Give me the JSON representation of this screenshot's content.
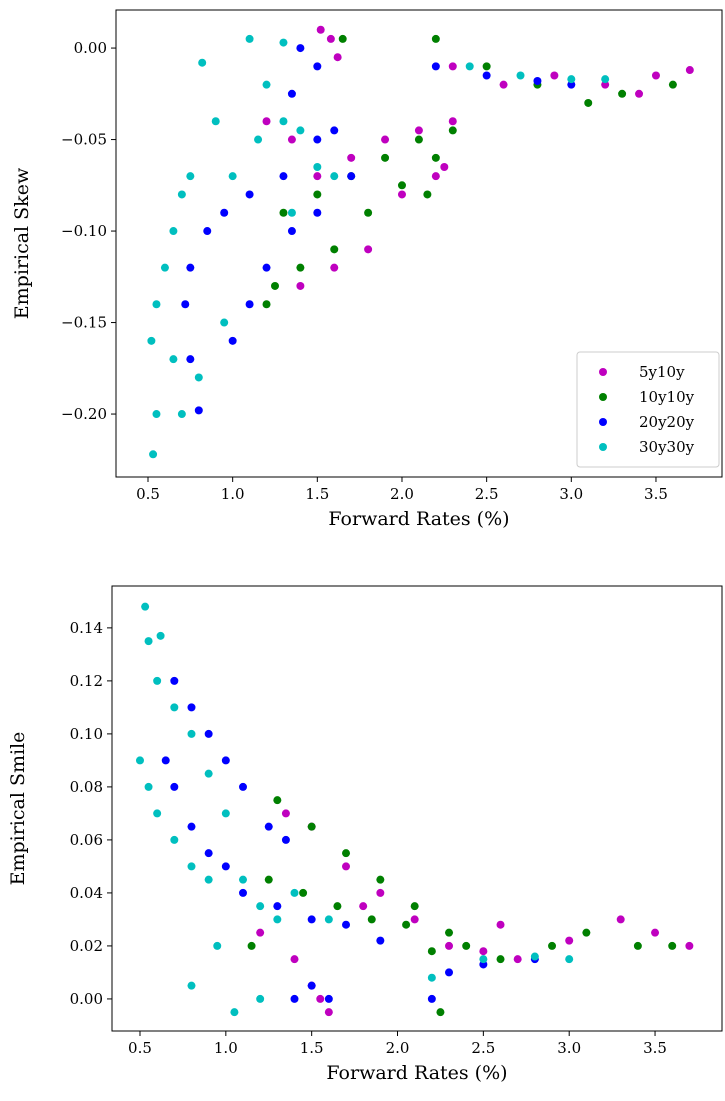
{
  "chart_data": [
    {
      "type": "scatter",
      "xlabel": "Forward Rates (%)",
      "ylabel": "Empirical Skew",
      "xlim": [
        0.311,
        3.89
      ],
      "ylim": [
        -0.2344,
        0.0208
      ],
      "xticks": [
        0.5,
        {
          "value": 1.0,
          "label": "1.0"
        },
        1.5,
        {
          "value": 2.0,
          "label": "2.0"
        },
        2.5,
        {
          "value": 3.0,
          "label": "3.0"
        },
        3.5
      ],
      "yticks": [
        {
          "value": -0.2,
          "label": "−0.20"
        },
        {
          "value": -0.15,
          "label": "−0.15"
        },
        {
          "value": -0.1,
          "label": "−0.10"
        },
        {
          "value": -0.05,
          "label": "−0.05"
        },
        {
          "value": 0,
          "label": "0.00"
        }
      ],
      "legend": "lower right",
      "series": [
        {
          "name": "5y10y",
          "color": "#bf00bf",
          "x": [
            1.52,
            1.58,
            1.62,
            1.2,
            1.35,
            1.5,
            1.7,
            1.9,
            2.1,
            2.3,
            2.2,
            2.25,
            1.4,
            1.6,
            1.8,
            2.0,
            2.3,
            2.6,
            2.9,
            3.2,
            3.5,
            3.7,
            3.4
          ],
          "values": [
            0.01,
            0.005,
            -0.005,
            -0.04,
            -0.05,
            -0.07,
            -0.06,
            -0.05,
            -0.045,
            -0.04,
            -0.07,
            -0.065,
            -0.13,
            -0.12,
            -0.11,
            -0.08,
            -0.01,
            -0.02,
            -0.015,
            -0.02,
            -0.015,
            -0.012,
            -0.025
          ]
        },
        {
          "name": "10y10y",
          "color": "#008000",
          "x": [
            1.65,
            1.25,
            1.4,
            1.6,
            1.8,
            2.0,
            2.1,
            2.2,
            2.15,
            2.3,
            1.3,
            1.5,
            1.7,
            1.9,
            2.2,
            2.5,
            2.8,
            3.1,
            3.3,
            3.6,
            1.2
          ],
          "values": [
            0.005,
            -0.13,
            -0.12,
            -0.11,
            -0.09,
            -0.075,
            -0.05,
            -0.06,
            -0.08,
            -0.045,
            -0.09,
            -0.08,
            -0.07,
            -0.06,
            0.005,
            -0.01,
            -0.02,
            -0.03,
            -0.025,
            -0.02,
            -0.14
          ]
        },
        {
          "name": "20y20y",
          "color": "#0000ff",
          "x": [
            0.8,
            0.75,
            0.72,
            0.75,
            0.85,
            0.95,
            1.1,
            1.3,
            1.5,
            1.6,
            1.0,
            1.1,
            1.2,
            1.35,
            1.5,
            1.7,
            1.4,
            1.5,
            1.35,
            2.2,
            2.5,
            2.8,
            3.0
          ],
          "values": [
            -0.198,
            -0.17,
            -0.14,
            -0.12,
            -0.1,
            -0.09,
            -0.08,
            -0.07,
            -0.05,
            -0.045,
            -0.16,
            -0.14,
            -0.12,
            -0.1,
            -0.09,
            -0.07,
            0.0,
            -0.01,
            -0.025,
            -0.01,
            -0.015,
            -0.018,
            -0.02
          ]
        },
        {
          "name": "30y30y",
          "color": "#00bfbf",
          "x": [
            0.53,
            0.55,
            0.52,
            0.55,
            0.6,
            0.65,
            0.7,
            0.75,
            0.82,
            0.9,
            1.0,
            1.1,
            1.2,
            1.3,
            1.15,
            1.3,
            1.4,
            1.5,
            1.6,
            1.35,
            0.7,
            0.8,
            0.95,
            0.65,
            2.4,
            2.7,
            3.0,
            3.2
          ],
          "values": [
            -0.222,
            -0.2,
            -0.16,
            -0.14,
            -0.12,
            -0.1,
            -0.08,
            -0.07,
            -0.008,
            -0.04,
            -0.07,
            0.005,
            -0.02,
            0.003,
            -0.05,
            -0.04,
            -0.045,
            -0.065,
            -0.07,
            -0.09,
            -0.2,
            -0.18,
            -0.15,
            -0.17,
            -0.01,
            -0.015,
            -0.017,
            -0.017
          ]
        }
      ]
    },
    {
      "type": "scatter",
      "xlabel": "Forward Rates (%)",
      "ylabel": "Empirical Smile",
      "xlim": [
        0.337,
        3.89
      ],
      "ylim": [
        -0.0121,
        0.1558
      ],
      "xticks": [
        0.5,
        {
          "value": 1.0,
          "label": "1.0"
        },
        1.5,
        {
          "value": 2.0,
          "label": "2.0"
        },
        2.5,
        {
          "value": 3.0,
          "label": "3.0"
        },
        3.5
      ],
      "yticks": [
        {
          "value": 0,
          "label": "0.00"
        },
        {
          "value": 0.02,
          "label": "0.02"
        },
        {
          "value": 0.04,
          "label": "0.04"
        },
        {
          "value": 0.06,
          "label": "0.06"
        },
        {
          "value": 0.08,
          "label": "0.08"
        },
        {
          "value": 0.1,
          "label": "0.10"
        },
        {
          "value": 0.12,
          "label": "0.12"
        },
        {
          "value": 0.14,
          "label": "0.14"
        }
      ],
      "series": [
        {
          "name": "5y10y",
          "color": "#bf00bf",
          "x": [
            1.5,
            1.55,
            1.6,
            1.2,
            1.35,
            1.5,
            1.7,
            1.9,
            2.1,
            2.3,
            2.5,
            2.6,
            2.7,
            3.0,
            3.3,
            3.5,
            3.7,
            1.8,
            1.4
          ],
          "values": [
            0.005,
            0.0,
            -0.005,
            0.025,
            0.07,
            0.065,
            0.05,
            0.04,
            0.03,
            0.02,
            0.018,
            0.028,
            0.015,
            0.022,
            0.03,
            0.025,
            0.02,
            0.035,
            0.015
          ]
        },
        {
          "name": "10y10y",
          "color": "#008000",
          "x": [
            1.3,
            1.5,
            1.7,
            1.9,
            2.1,
            2.3,
            2.4,
            1.25,
            1.45,
            1.65,
            1.85,
            2.05,
            2.2,
            2.25,
            2.6,
            2.9,
            3.1,
            3.4,
            3.6,
            1.15
          ],
          "values": [
            0.075,
            0.065,
            0.055,
            0.045,
            0.035,
            0.025,
            0.02,
            0.045,
            0.04,
            0.035,
            0.03,
            0.028,
            0.018,
            -0.005,
            0.015,
            0.02,
            0.025,
            0.02,
            0.02,
            0.02
          ]
        },
        {
          "name": "20y20y",
          "color": "#0000ff",
          "x": [
            0.7,
            0.8,
            0.9,
            1.0,
            1.1,
            1.25,
            1.35,
            0.65,
            0.7,
            0.8,
            0.9,
            1.0,
            1.1,
            1.3,
            1.5,
            1.7,
            1.9,
            1.4,
            1.5,
            1.6,
            2.2,
            2.3,
            2.5,
            2.8
          ],
          "values": [
            0.12,
            0.11,
            0.1,
            0.09,
            0.08,
            0.065,
            0.06,
            0.09,
            0.08,
            0.065,
            0.055,
            0.05,
            0.04,
            0.035,
            0.03,
            0.028,
            0.022,
            0.0,
            0.005,
            0.0,
            0.0,
            0.01,
            0.013,
            0.015
          ]
        },
        {
          "name": "30y30y",
          "color": "#00bfbf",
          "x": [
            0.53,
            0.55,
            0.6,
            0.62,
            0.5,
            0.55,
            0.6,
            0.7,
            0.8,
            0.9,
            0.7,
            0.8,
            0.9,
            1.0,
            1.1,
            1.2,
            1.3,
            1.4,
            1.6,
            0.8,
            0.95,
            1.05,
            1.2,
            2.2,
            2.5,
            2.8,
            3.0
          ],
          "values": [
            0.148,
            0.135,
            0.12,
            0.137,
            0.09,
            0.08,
            0.07,
            0.06,
            0.05,
            0.045,
            0.11,
            0.1,
            0.085,
            0.07,
            0.045,
            0.035,
            0.03,
            0.04,
            0.03,
            0.005,
            0.02,
            -0.005,
            0.0,
            0.008,
            0.015,
            0.016,
            0.015
          ]
        }
      ]
    }
  ]
}
